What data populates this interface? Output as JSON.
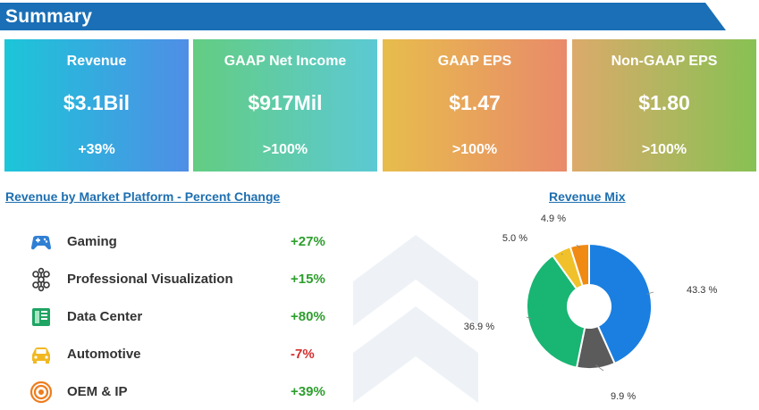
{
  "header": {
    "title": "Summary"
  },
  "cards": [
    {
      "label": "Revenue",
      "value": "$3.1Bil",
      "change": "+39%"
    },
    {
      "label": "GAAP Net Income",
      "value": "$917Mil",
      "change": ">100%"
    },
    {
      "label": "GAAP EPS",
      "value": "$1.47",
      "change": ">100%"
    },
    {
      "label": "Non-GAAP EPS",
      "value": "$1.80",
      "change": ">100%"
    }
  ],
  "platforms": {
    "title": "Revenue by Market Platform - Percent Change",
    "items": [
      {
        "label": "Gaming",
        "change": "+27%",
        "icon": "gamepad-icon",
        "color": "#2e9e2e"
      },
      {
        "label": "Professional Visualization",
        "change": "+15%",
        "icon": "network-nodes-icon",
        "color": "#2e9e2e"
      },
      {
        "label": "Data Center",
        "change": "+80%",
        "icon": "server-icon",
        "color": "#2e9e2e"
      },
      {
        "label": "Automotive",
        "change": "-7%",
        "icon": "car-icon",
        "color": "#d32f2f"
      },
      {
        "label": "OEM & IP",
        "change": "+39%",
        "icon": "target-icon",
        "color": "#2e9e2e"
      }
    ]
  },
  "revenue_mix": {
    "title": "Revenue Mix"
  },
  "chart_data": {
    "type": "pie",
    "title": "Revenue Mix",
    "donut": true,
    "slices": [
      {
        "label": "43.3 %",
        "value": 43.3,
        "color": "#1a7fe0"
      },
      {
        "label": "9.9 %",
        "value": 9.9,
        "color": "#5b5b5b"
      },
      {
        "label": "36.9 %",
        "value": 36.9,
        "color": "#19b572"
      },
      {
        "label": "5.0 %",
        "value": 5.0,
        "color": "#f0c12a"
      },
      {
        "label": "4.9 %",
        "value": 4.9,
        "color": "#f08a12"
      }
    ]
  }
}
